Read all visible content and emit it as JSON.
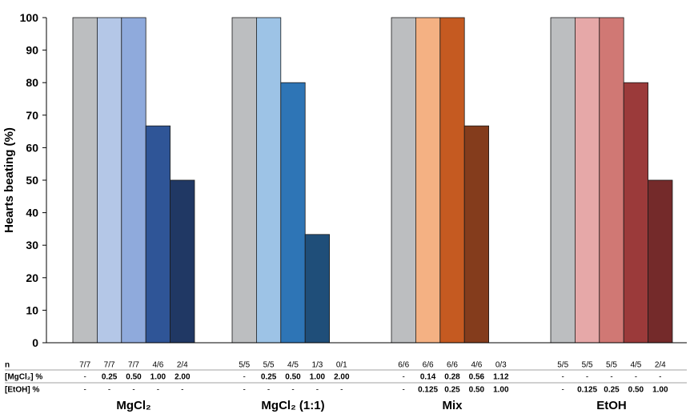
{
  "chart_data": {
    "type": "bar",
    "ylabel": "Hearts beating (%)",
    "ylim": [
      0,
      100
    ],
    "yticks": [
      0,
      10,
      20,
      30,
      40,
      50,
      60,
      70,
      80,
      90,
      100
    ],
    "grid": false,
    "row_labels": {
      "n": "n",
      "mgcl2": "[MgCl₂] %",
      "etoh": "[EtOH] %"
    },
    "groups": [
      {
        "label": "MgCl₂",
        "bars": [
          {
            "value": 100,
            "color": "#bcbec0",
            "n": "7/7",
            "mgcl2": "-",
            "etoh": "-"
          },
          {
            "value": 100,
            "color": "#b4c7e7",
            "n": "7/7",
            "mgcl2": "0.25",
            "etoh": "-"
          },
          {
            "value": 100,
            "color": "#8faadc",
            "n": "7/7",
            "mgcl2": "0.50",
            "etoh": "-"
          },
          {
            "value": 66.7,
            "color": "#2f5597",
            "n": "4/6",
            "mgcl2": "1.00",
            "etoh": "-"
          },
          {
            "value": 50,
            "color": "#203864",
            "n": "2/4",
            "mgcl2": "2.00",
            "etoh": "-"
          }
        ]
      },
      {
        "label": "MgCl₂ (1:1)",
        "bars": [
          {
            "value": 100,
            "color": "#bcbec0",
            "n": "5/5",
            "mgcl2": "-",
            "etoh": "-"
          },
          {
            "value": 100,
            "color": "#9dc3e6",
            "n": "5/5",
            "mgcl2": "0.25",
            "etoh": "-"
          },
          {
            "value": 80,
            "color": "#2e75b6",
            "n": "4/5",
            "mgcl2": "0.50",
            "etoh": "-"
          },
          {
            "value": 33.3,
            "color": "#1f4e79",
            "n": "1/3",
            "mgcl2": "1.00",
            "etoh": "-"
          },
          {
            "value": 0,
            "color": "#1f4e79",
            "n": "0/1",
            "mgcl2": "2.00",
            "etoh": "-"
          }
        ]
      },
      {
        "label": "Mix",
        "bars": [
          {
            "value": 100,
            "color": "#bcbec0",
            "n": "6/6",
            "mgcl2": "-",
            "etoh": "-"
          },
          {
            "value": 100,
            "color": "#f4b183",
            "n": "6/6",
            "mgcl2": "0.14",
            "etoh": "0.125"
          },
          {
            "value": 100,
            "color": "#c55a21",
            "n": "6/6",
            "mgcl2": "0.28",
            "etoh": "0.25"
          },
          {
            "value": 66.7,
            "color": "#843c1c",
            "n": "4/6",
            "mgcl2": "0.56",
            "etoh": "0.50"
          },
          {
            "value": 0,
            "color": "#843c1c",
            "n": "0/3",
            "mgcl2": "1.12",
            "etoh": "1.00"
          }
        ]
      },
      {
        "label": "EtOH",
        "bars": [
          {
            "value": 100,
            "color": "#bcbec0",
            "n": "5/5",
            "mgcl2": "-",
            "etoh": "-"
          },
          {
            "value": 100,
            "color": "#e6a8a8",
            "n": "5/5",
            "mgcl2": "-",
            "etoh": "0.125"
          },
          {
            "value": 100,
            "color": "#d07874",
            "n": "5/5",
            "mgcl2": "-",
            "etoh": "0.25"
          },
          {
            "value": 80,
            "color": "#9b3a3a",
            "n": "4/5",
            "mgcl2": "-",
            "etoh": "0.50"
          },
          {
            "value": 50,
            "color": "#742a2a",
            "n": "2/4",
            "mgcl2": "-",
            "etoh": "1.00"
          }
        ]
      }
    ]
  }
}
